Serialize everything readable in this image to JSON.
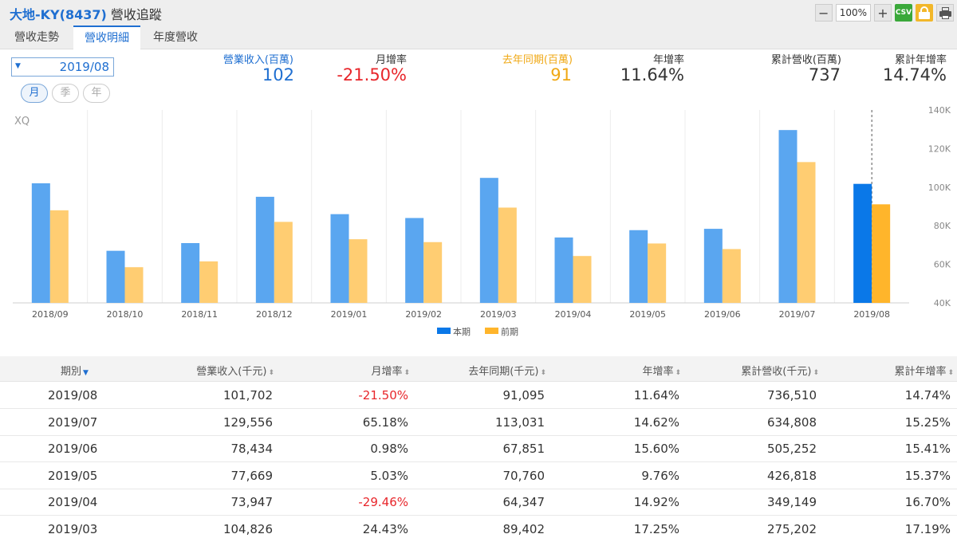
{
  "header": {
    "company": "大地-KY(8437)",
    "title": "營收追蹤",
    "zoom": "100%",
    "csv_label": "CSV"
  },
  "tabs": [
    {
      "label": "營收走勢",
      "active": false
    },
    {
      "label": "營收明細",
      "active": true
    },
    {
      "label": "年度營收",
      "active": false
    }
  ],
  "period_select": {
    "value": "2019/08"
  },
  "granularity": [
    {
      "label": "月",
      "active": true
    },
    {
      "label": "季",
      "active": false
    },
    {
      "label": "年",
      "active": false
    }
  ],
  "summary": [
    {
      "label": "營業收入(百萬)",
      "value": "102",
      "label_color": "#1f6fd1",
      "value_color": "#1f6fd1"
    },
    {
      "label": "月增率",
      "value": "-21.50%",
      "label_color": "#333333",
      "value_color": "#e8262b"
    },
    {
      "label": "去年同期(百萬)",
      "value": "91",
      "label_color": "#f0a814",
      "value_color": "#f0a814"
    },
    {
      "label": "年增率",
      "value": "11.64%",
      "label_color": "#333333",
      "value_color": "#333333"
    },
    {
      "label": "累計營收(百萬)",
      "value": "737",
      "label_color": "#333333",
      "value_color": "#333333"
    },
    {
      "label": "累計年增率",
      "value": "14.74%",
      "label_color": "#333333",
      "value_color": "#333333"
    }
  ],
  "chart_data": {
    "type": "bar",
    "watermark": "XQ",
    "categories": [
      "2018/09",
      "2018/10",
      "2018/11",
      "2018/12",
      "2019/01",
      "2019/02",
      "2019/03",
      "2019/04",
      "2019/05",
      "2019/06",
      "2019/07",
      "2019/08"
    ],
    "series": [
      {
        "name": "本期",
        "color": "#5aa6f0",
        "highlight_color": "#0a78e8",
        "values": [
          102,
          67,
          71,
          95,
          86,
          84,
          104.8,
          73.9,
          77.7,
          78.4,
          129.6,
          101.7
        ]
      },
      {
        "name": "前期",
        "color": "#ffcd72",
        "highlight_color": "#ffb52b",
        "values": [
          88,
          58.5,
          61.5,
          82,
          73,
          71.5,
          89.4,
          64.3,
          70.8,
          67.9,
          113,
          91.1
        ]
      }
    ],
    "yunit": "K",
    "ylim": [
      40,
      140
    ],
    "yticks": [
      "40K",
      "60K",
      "80K",
      "100K",
      "120K",
      "140K"
    ],
    "highlight_index": 11,
    "grid": "vertical",
    "legend": "bottom-center"
  },
  "table": {
    "columns": [
      "期別",
      "營業收入(千元)",
      "月增率",
      "去年同期(千元)",
      "年增率",
      "累計營收(千元)",
      "累計年增率"
    ],
    "rows": [
      [
        "2019/08",
        "101,702",
        "-21.50%",
        "91,095",
        "11.64%",
        "736,510",
        "14.74%"
      ],
      [
        "2019/07",
        "129,556",
        "65.18%",
        "113,031",
        "14.62%",
        "634,808",
        "15.25%"
      ],
      [
        "2019/06",
        "78,434",
        "0.98%",
        "67,851",
        "15.60%",
        "505,252",
        "15.41%"
      ],
      [
        "2019/05",
        "77,669",
        "5.03%",
        "70,760",
        "9.76%",
        "426,818",
        "15.37%"
      ],
      [
        "2019/04",
        "73,947",
        "-29.46%",
        "64,347",
        "14.92%",
        "349,149",
        "16.70%"
      ],
      [
        "2019/03",
        "104,826",
        "24.43%",
        "89,402",
        "17.25%",
        "275,202",
        "17.19%"
      ]
    ]
  }
}
